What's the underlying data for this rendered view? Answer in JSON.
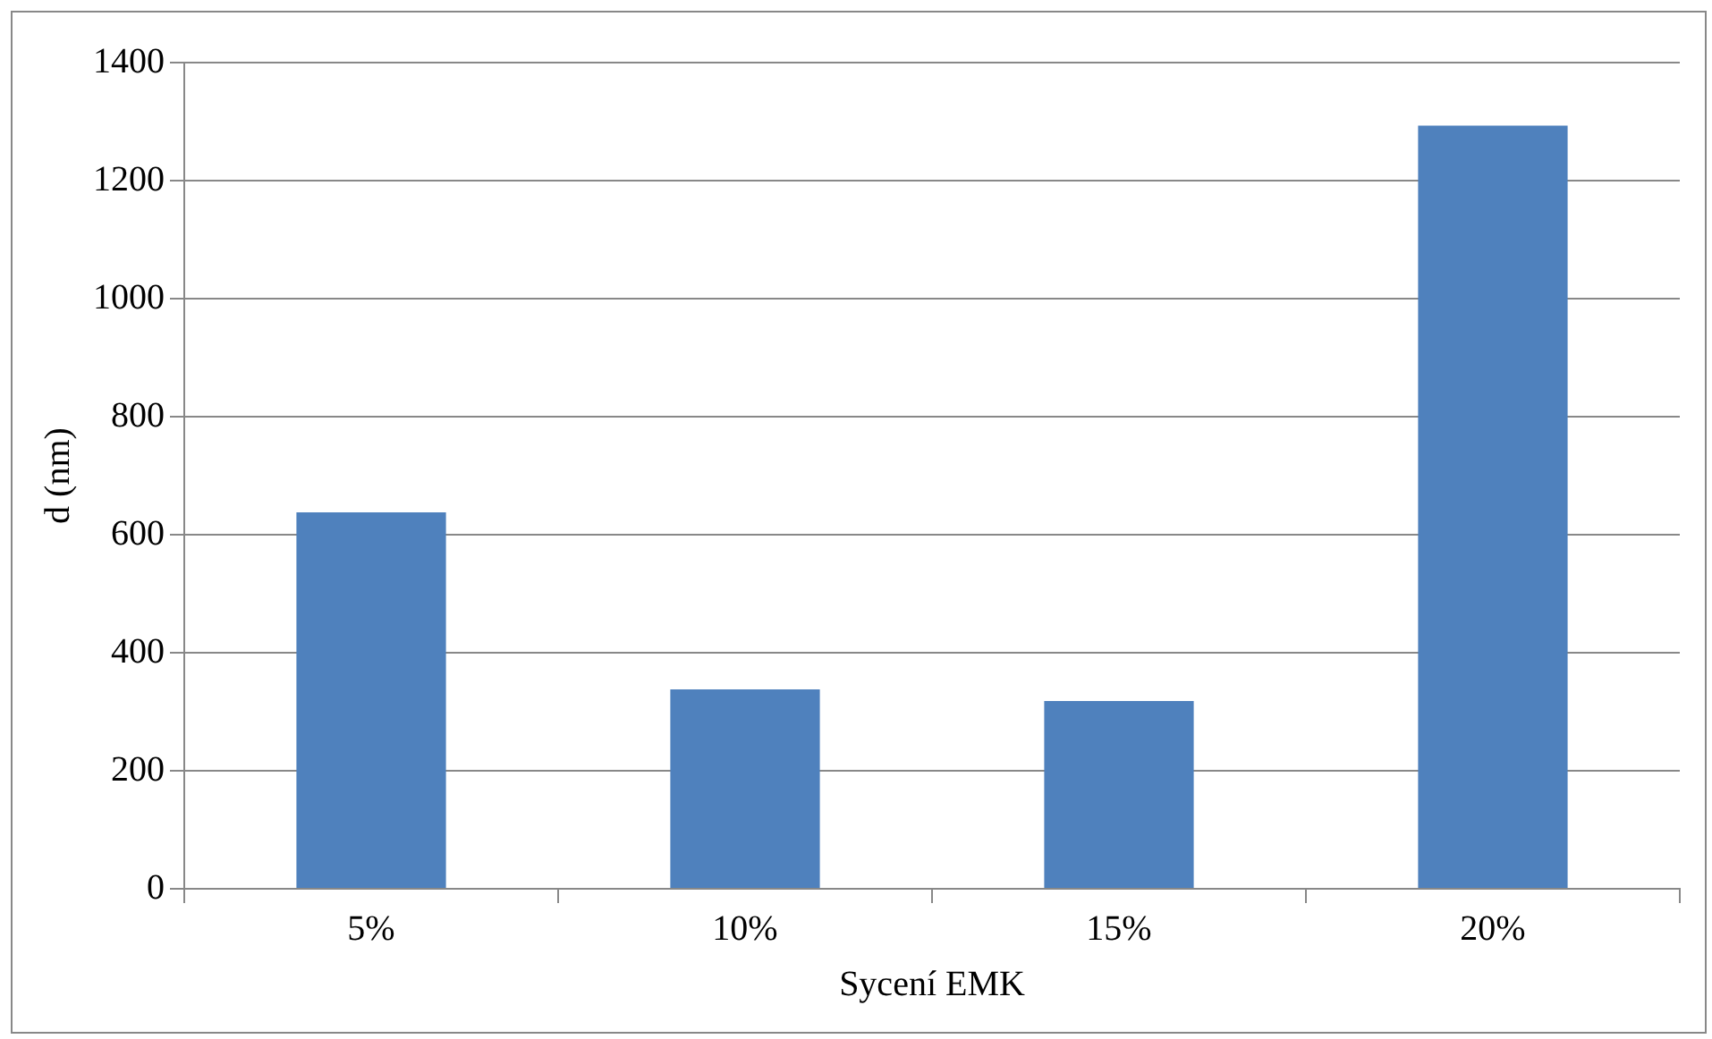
{
  "chart_data": {
    "type": "bar",
    "xlabel": "Sycení EMK",
    "ylabel": "d (nm)",
    "categories": [
      "5%",
      "10%",
      "15%",
      "20%"
    ],
    "values": [
      638,
      338,
      318,
      1293
    ],
    "color": "#4f81bd",
    "ylim": [
      0,
      1400
    ],
    "yticks": [
      0,
      200,
      400,
      600,
      800,
      1000,
      1200,
      1400
    ],
    "grid": "y",
    "legend": false
  }
}
